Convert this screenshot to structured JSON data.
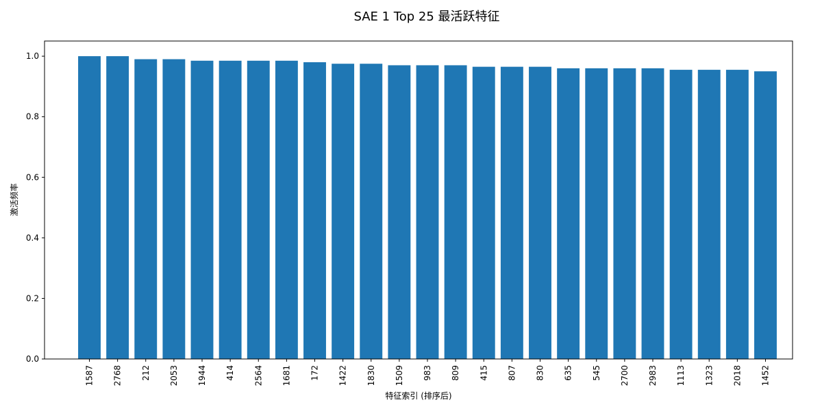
{
  "chart_data": {
    "type": "bar",
    "title": "SAE 1 Top 25 最活跃特征",
    "xlabel": "特征索引 (排序后)",
    "ylabel": "激活频率",
    "categories": [
      "1587",
      "2768",
      "212",
      "2053",
      "1944",
      "414",
      "2564",
      "1681",
      "172",
      "1422",
      "1830",
      "1509",
      "983",
      "809",
      "415",
      "807",
      "830",
      "635",
      "545",
      "2700",
      "2983",
      "1113",
      "1323",
      "2018",
      "1452"
    ],
    "values": [
      1.0,
      1.0,
      0.99,
      0.99,
      0.985,
      0.985,
      0.985,
      0.985,
      0.98,
      0.975,
      0.975,
      0.97,
      0.97,
      0.97,
      0.965,
      0.965,
      0.965,
      0.96,
      0.96,
      0.96,
      0.96,
      0.955,
      0.955,
      0.955,
      0.95
    ],
    "ylim": [
      0,
      1.05
    ],
    "yticks": [
      0.0,
      0.2,
      0.4,
      0.6,
      0.8,
      1.0
    ],
    "ytick_labels": [
      "0.0",
      "0.2",
      "0.4",
      "0.6",
      "0.8",
      "1.0"
    ],
    "bar_color": "#1f77b4",
    "grid": false
  }
}
